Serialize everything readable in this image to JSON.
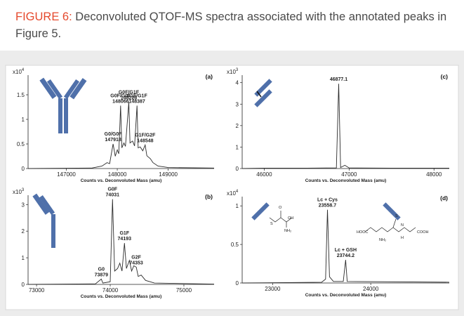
{
  "caption": {
    "label": "FIGURE 6:",
    "text": "Deconvoluted QTOF-MS spectra associated with the annotated peaks in Figure 5."
  },
  "chart_data": [
    {
      "type": "line",
      "panel_label": "(a)",
      "x_label": "Counts vs. Deconvoluted Mass (amu)",
      "y_multiplier": {
        "base": "x10",
        "exponent": "4"
      },
      "xlim": [
        146250,
        149900
      ],
      "xticks": [
        147000,
        148000,
        149000
      ],
      "ylim": [
        0,
        1.9
      ],
      "yticks": [
        0,
        0.5,
        1,
        1.5
      ],
      "series": [
        {
          "color": "#2b2b2b",
          "x": [
            146250,
            147500,
            147700,
            147800,
            147850,
            147918,
            147960,
            148000,
            148030,
            148066,
            148090,
            148130,
            148160,
            148226,
            148250,
            148300,
            148340,
            148387,
            148410,
            148450,
            148500,
            148548,
            148580,
            148650,
            148700,
            148800,
            149000,
            149900
          ],
          "values": [
            0,
            0.01,
            0.05,
            0.12,
            0.1,
            0.5,
            0.25,
            0.38,
            0.3,
            1.28,
            0.42,
            0.52,
            0.45,
            1.35,
            0.52,
            0.56,
            0.46,
            1.28,
            0.42,
            0.44,
            0.36,
            0.48,
            0.26,
            0.2,
            0.12,
            0.05,
            0.02,
            0.01
          ]
        }
      ],
      "annotations": [
        {
          "label": "G0/G0F",
          "x": 147918
        },
        {
          "label": "G0F/G0F",
          "x": 148066
        },
        {
          "label": "G0F/G1F",
          "x": 148226
        },
        {
          "label": "G1F/G1F",
          "x": 148387
        },
        {
          "label": "G1F/G2F",
          "x": 148548
        }
      ]
    },
    {
      "type": "line",
      "panel_label": "(c)",
      "x_label": "Counts vs. Deconvoluted Mass (amu)",
      "y_multiplier": {
        "base": "x10",
        "exponent": "3"
      },
      "xlim": [
        45740,
        48180
      ],
      "xticks": [
        46000,
        47000,
        48000
      ],
      "ylim": [
        0,
        4.35
      ],
      "yticks": [
        0,
        1,
        2,
        3,
        4
      ],
      "series": [
        {
          "color": "#2b2b2b",
          "x": [
            45740,
            46000,
            46500,
            46850,
            46877.1,
            46900,
            46950,
            47000,
            47500,
            48180
          ],
          "values": [
            0,
            0.02,
            0.02,
            0.03,
            3.95,
            0.05,
            0.15,
            0.03,
            0.02,
            0.02
          ]
        }
      ],
      "annotations": [
        {
          "x": 46877.1
        }
      ]
    },
    {
      "type": "line",
      "panel_label": "(b)",
      "x_label": "Counts vs. Deconvoluted Mass (amu)",
      "y_multiplier": {
        "base": "x10",
        "exponent": "3"
      },
      "xlim": [
        72885,
        75410
      ],
      "xticks": [
        73000,
        74000,
        75000
      ],
      "ylim": [
        0,
        3.35
      ],
      "yticks": [
        0,
        1,
        2,
        3
      ],
      "series": [
        {
          "color": "#2b2b2b",
          "x": [
            72885,
            73800,
            73879,
            73900,
            74000,
            74031,
            74060,
            74100,
            74130,
            74160,
            74193,
            74220,
            74260,
            74290,
            74320,
            74353,
            74380,
            74420,
            74480,
            74600,
            75410
          ],
          "values": [
            0,
            0.02,
            0.2,
            0.05,
            0.1,
            3.2,
            0.5,
            0.6,
            0.8,
            0.5,
            1.55,
            0.6,
            0.9,
            0.5,
            0.7,
            0.65,
            0.3,
            0.35,
            0.15,
            0.05,
            0.01
          ]
        }
      ],
      "annotations": [
        {
          "label": "G0",
          "x": 73879
        },
        {
          "label": "G0F",
          "x": 74031
        },
        {
          "label": "G1F",
          "x": 74193
        },
        {
          "label": "G2F",
          "x": 74353
        }
      ]
    },
    {
      "type": "line",
      "panel_label": "(d)",
      "x_label": "Counts vs. Deconvoluted Mass (amu)",
      "y_multiplier": {
        "base": "x10",
        "exponent": "4"
      },
      "xlim": [
        22690,
        24800
      ],
      "xticks": [
        23000,
        24000
      ],
      "ylim": [
        0,
        1.12
      ],
      "yticks": [
        0,
        0.5,
        1
      ],
      "series": [
        {
          "color": "#2b2b2b",
          "x": [
            22690,
            23500,
            23540,
            23558.7,
            23580,
            23620,
            23720,
            23744.2,
            23760,
            24800
          ],
          "values": [
            0,
            0.01,
            0.05,
            0.95,
            0.08,
            0.02,
            0.02,
            0.3,
            0.02,
            0.01
          ]
        }
      ],
      "annotations": [
        {
          "label": "Lc + Cys",
          "x": 23558.7
        },
        {
          "label": "Lc + GSH",
          "x": 23744.2
        }
      ],
      "structure_labels": {
        "cys": [
          "S",
          "O",
          "OH",
          "NH₂"
        ],
        "gsh": [
          "S",
          "HOOC",
          "COOH",
          "N",
          "H",
          "NH₂"
        ]
      }
    }
  ]
}
